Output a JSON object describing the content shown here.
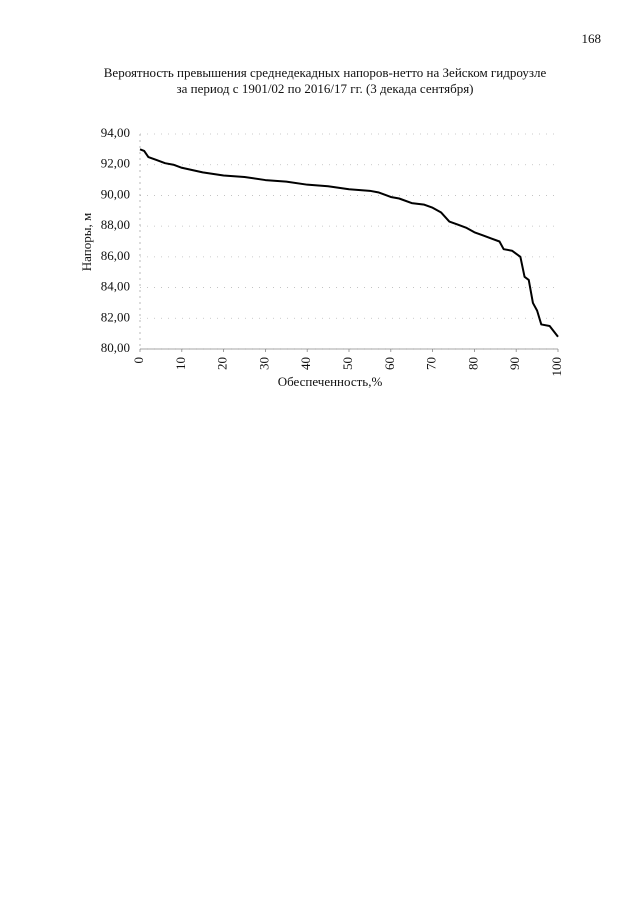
{
  "page_number": "168",
  "chart_data": {
    "type": "line",
    "title": "Вероятность превышения среднедекадных напоров-нетто на Зейском гидроузле",
    "subtitle": "за период с 1901/02 по 2016/17 гг. (3 декада сентября)",
    "x_label": "Обеспеченность,%",
    "y_label": "Напоры, м",
    "x": [
      0,
      1,
      2,
      4,
      6,
      8,
      10,
      15,
      20,
      25,
      30,
      35,
      40,
      45,
      50,
      55,
      57,
      60,
      62,
      65,
      68,
      70,
      72,
      74,
      76,
      78,
      80,
      82,
      84,
      86,
      87,
      89,
      91,
      92,
      93,
      94,
      95,
      96,
      98,
      100
    ],
    "series": [
      {
        "name": "Напоры",
        "color": "#000000",
        "values": [
          93.0,
          92.9,
          92.5,
          92.3,
          92.1,
          92.0,
          91.8,
          91.5,
          91.3,
          91.2,
          91.0,
          90.9,
          90.7,
          90.6,
          90.4,
          90.3,
          90.2,
          89.9,
          89.8,
          89.5,
          89.4,
          89.2,
          88.9,
          88.3,
          88.1,
          87.9,
          87.6,
          87.4,
          87.2,
          87.0,
          86.5,
          86.4,
          86.0,
          84.7,
          84.5,
          83.0,
          82.5,
          81.6,
          81.5,
          80.8
        ]
      }
    ],
    "xlim": [
      0,
      100
    ],
    "xticks": [
      0,
      10,
      20,
      30,
      40,
      50,
      60,
      70,
      80,
      90,
      100
    ],
    "ylim": [
      80,
      94
    ],
    "yticks": [
      {
        "value": 80,
        "label": "80,00"
      },
      {
        "value": 82,
        "label": "82,00"
      },
      {
        "value": 84,
        "label": "84,00"
      },
      {
        "value": 86,
        "label": "86,00"
      },
      {
        "value": 88,
        "label": "88,00"
      },
      {
        "value": 90,
        "label": "90,00"
      },
      {
        "value": 92,
        "label": "92,00"
      },
      {
        "value": 94,
        "label": "94,00"
      }
    ],
    "grid": true
  }
}
